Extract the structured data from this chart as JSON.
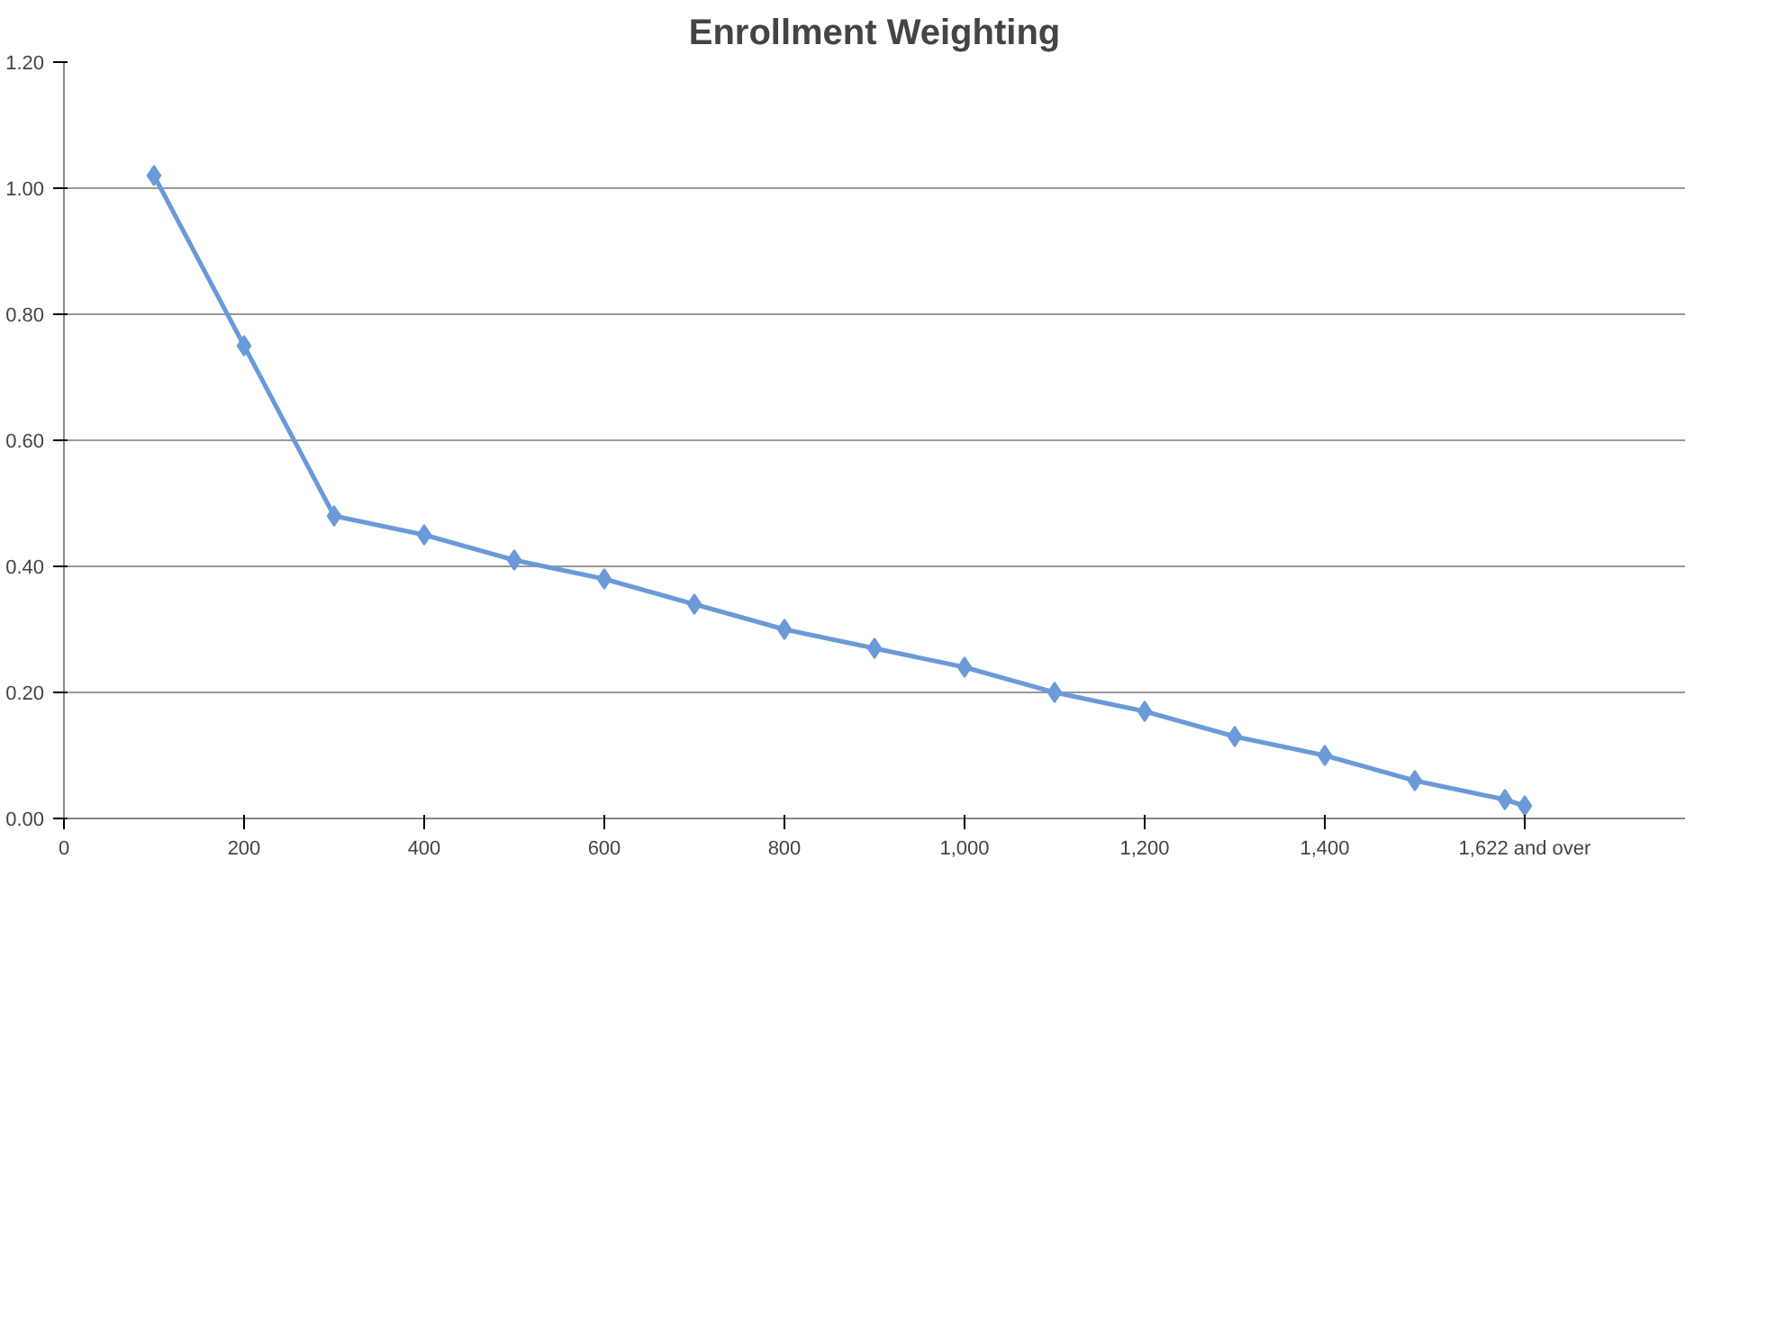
{
  "chart_data": {
    "type": "line",
    "title": "Enrollment Weighting",
    "x": [
      100,
      200,
      300,
      400,
      500,
      600,
      700,
      800,
      900,
      1000,
      1100,
      1200,
      1300,
      1400,
      1500,
      1600,
      1622
    ],
    "series": [
      {
        "color": "#6a9ad8",
        "values": [
          1.02,
          0.75,
          0.48,
          0.45,
          0.41,
          0.38,
          0.34,
          0.3,
          0.27,
          0.24,
          0.2,
          0.17,
          0.13,
          0.1,
          0.06,
          0.03,
          0.02
        ]
      }
    ],
    "xlim": [
      0,
      1800
    ],
    "xticks": [
      0,
      200,
      400,
      600,
      800,
      {
        "value": 1000,
        "label": "1,000"
      },
      {
        "value": 1200,
        "label": "1,200"
      },
      {
        "value": 1400,
        "label": "1,400"
      },
      {
        "value": 1622,
        "label": "1,622 and over"
      }
    ],
    "ylim": [
      0,
      1.2
    ],
    "yticks": [
      {
        "value": 0,
        "label": "0.00"
      },
      {
        "value": 0.2,
        "label": "0.20"
      },
      {
        "value": 0.4,
        "label": "0.40"
      },
      {
        "value": 0.6,
        "label": "0.60"
      },
      {
        "value": 0.8,
        "label": "0.80"
      },
      {
        "value": 1.0,
        "label": "1.00"
      },
      {
        "value": 1.2,
        "label": "1.20"
      }
    ],
    "grid": "y",
    "marker": "diamond",
    "line_style": "solid"
  }
}
